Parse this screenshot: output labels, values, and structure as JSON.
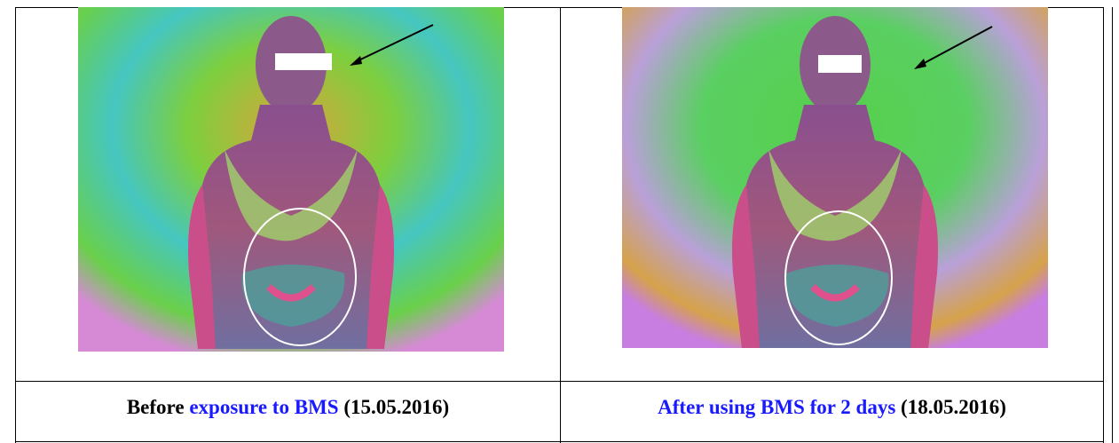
{
  "captions": [
    {
      "parts": [
        "Before",
        "exposure to BMS",
        "(15.05.2016)"
      ]
    },
    {
      "parts": [
        "After using BMS for 2 days",
        "(18.05.2016)"
      ]
    }
  ]
}
